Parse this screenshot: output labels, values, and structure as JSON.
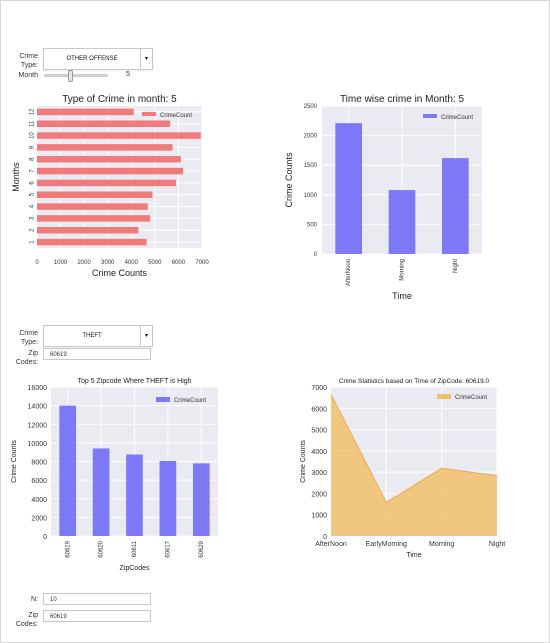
{
  "colors": {
    "red_bar": "#f07b7b",
    "blue_bar": "#7d79f6",
    "orange_area": "#f2bf6d",
    "plot_bg": "#eaeaf2",
    "grid": "#ffffff"
  },
  "controls1": {
    "crime_type_label": "Crime Type:",
    "crime_type_value": "OTHER OFFENSE",
    "month_label": "Month",
    "month_value": "5",
    "month_level": 0.4
  },
  "controls2": {
    "crime_type_label": "Crime Type:",
    "crime_type_value": "THEFT",
    "zip_label": "Zip Codes:",
    "zip_value": "60619"
  },
  "controls3": {
    "n_label": "N:",
    "n_value": "10",
    "zip_label": "Zip Codes:",
    "zip_value": "60619"
  },
  "chart_data": [
    {
      "type": "bar",
      "orientation": "horizontal",
      "title": "Type of Crime in month: 5",
      "xlabel": "Crime Counts",
      "ylabel": "Months",
      "categories": [
        "1",
        "2",
        "3",
        "4",
        "5",
        "6",
        "7",
        "8",
        "9",
        "10",
        "11",
        "12"
      ],
      "series": [
        {
          "name": "CrimeCount",
          "values": [
            4650,
            4300,
            4800,
            4700,
            4900,
            5900,
            6200,
            6100,
            5750,
            6950,
            5650,
            4100
          ]
        }
      ],
      "xlim": [
        0,
        7000
      ],
      "xticks": [
        0,
        1000,
        2000,
        3000,
        4000,
        5000,
        6000,
        7000
      ],
      "legend": "top-right",
      "grid": true
    },
    {
      "type": "bar",
      "title": "Time wise crime in Month: 5",
      "xlabel": "Time",
      "ylabel": "Crime Counts",
      "categories": [
        "AfterNoon",
        "Morning",
        "Night"
      ],
      "series": [
        {
          "name": "CrimeCount",
          "values": [
            2210,
            1080,
            1620
          ]
        }
      ],
      "ylim": [
        0,
        2500
      ],
      "yticks": [
        0,
        500,
        1000,
        1500,
        2000,
        2500
      ],
      "legend": "top-right",
      "grid": true
    },
    {
      "type": "bar",
      "title": "Top 5 Zipcode Where THEFT is High",
      "xlabel": "ZipCodes",
      "ylabel": "Crime Counts",
      "categories": [
        "60619",
        "60620",
        "60611",
        "60617",
        "60629"
      ],
      "series": [
        {
          "name": "CrimeCount",
          "values": [
            14000,
            9400,
            8750,
            8050,
            7800
          ]
        }
      ],
      "ylim": [
        0,
        16000
      ],
      "yticks": [
        0,
        2000,
        4000,
        6000,
        8000,
        10000,
        12000,
        14000,
        16000
      ],
      "legend": "top-right",
      "grid": true
    },
    {
      "type": "area",
      "title": "Crime Statistics based on Time of ZipCode: 60619.0",
      "xlabel": "Time",
      "ylabel": "Crime Counts",
      "categories": [
        "AfterNoon",
        "EarlyMorning",
        "Morning",
        "Night"
      ],
      "series": [
        {
          "name": "CrimeCount",
          "values": [
            6650,
            1580,
            3180,
            2830
          ]
        }
      ],
      "ylim": [
        0,
        7000
      ],
      "yticks": [
        0,
        1000,
        2000,
        3000,
        4000,
        5000,
        6000,
        7000
      ],
      "legend": "top-right",
      "grid": true
    }
  ]
}
